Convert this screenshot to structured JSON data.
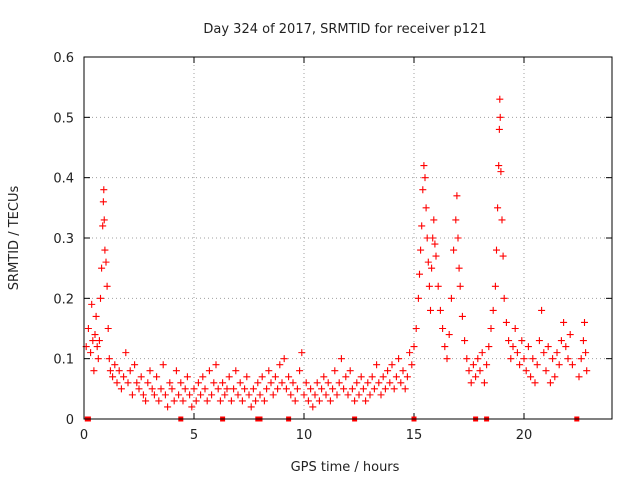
{
  "chart_data": {
    "type": "scatter",
    "title": "Day 324 of 2017, SRMTID for receiver p121",
    "xlabel": "GPS time / hours",
    "ylabel": "SRMTID / TECUs",
    "xlim": [
      0,
      24
    ],
    "ylim": [
      0,
      0.6
    ],
    "xticks": [
      0,
      5,
      10,
      15,
      20
    ],
    "xtick_labels": [
      "0",
      "5",
      "10",
      "15",
      "20"
    ],
    "yticks": [
      0,
      0.1,
      0.2,
      0.3,
      0.4,
      0.5,
      0.6
    ],
    "ytick_labels": [
      "0",
      "0.1",
      "0.2",
      "0.3",
      "0.4",
      "0.5",
      "0.6"
    ],
    "grid": true,
    "marker": "+",
    "series_color": "#ff0000",
    "series": [
      {
        "name": "SRMTID",
        "points": [
          [
            0.1,
            0.12
          ],
          [
            0.2,
            0.15
          ],
          [
            0.3,
            0.11
          ],
          [
            0.35,
            0.19
          ],
          [
            0.4,
            0.13
          ],
          [
            0.45,
            0.08
          ],
          [
            0.5,
            0.14
          ],
          [
            0.55,
            0.17
          ],
          [
            0.6,
            0.12
          ],
          [
            0.65,
            0.1
          ],
          [
            0.7,
            0.13
          ],
          [
            0.75,
            0.2
          ],
          [
            0.8,
            0.25
          ],
          [
            0.85,
            0.32
          ],
          [
            0.88,
            0.36
          ],
          [
            0.9,
            0.38
          ],
          [
            0.92,
            0.33
          ],
          [
            0.95,
            0.28
          ],
          [
            1.0,
            0.26
          ],
          [
            1.05,
            0.22
          ],
          [
            1.1,
            0.15
          ],
          [
            1.15,
            0.1
          ],
          [
            1.2,
            0.08
          ],
          [
            1.3,
            0.07
          ],
          [
            1.4,
            0.09
          ],
          [
            1.5,
            0.06
          ],
          [
            1.6,
            0.08
          ],
          [
            1.7,
            0.05
          ],
          [
            1.8,
            0.07
          ],
          [
            1.9,
            0.11
          ],
          [
            2.0,
            0.06
          ],
          [
            2.1,
            0.08
          ],
          [
            2.2,
            0.04
          ],
          [
            2.3,
            0.09
          ],
          [
            2.4,
            0.06
          ],
          [
            2.5,
            0.05
          ],
          [
            2.6,
            0.07
          ],
          [
            2.7,
            0.04
          ],
          [
            2.8,
            0.03
          ],
          [
            2.9,
            0.06
          ],
          [
            3.0,
            0.08
          ],
          [
            3.1,
            0.05
          ],
          [
            3.2,
            0.04
          ],
          [
            3.3,
            0.07
          ],
          [
            3.4,
            0.03
          ],
          [
            3.5,
            0.05
          ],
          [
            3.6,
            0.09
          ],
          [
            3.7,
            0.04
          ],
          [
            3.8,
            0.02
          ],
          [
            3.9,
            0.06
          ],
          [
            4.0,
            0.05
          ],
          [
            4.1,
            0.03
          ],
          [
            4.2,
            0.08
          ],
          [
            4.3,
            0.04
          ],
          [
            4.4,
            0.06
          ],
          [
            4.5,
            0.03
          ],
          [
            4.6,
            0.05
          ],
          [
            4.7,
            0.07
          ],
          [
            4.8,
            0.04
          ],
          [
            4.9,
            0.02
          ],
          [
            5.0,
            0.05
          ],
          [
            5.1,
            0.03
          ],
          [
            5.2,
            0.06
          ],
          [
            5.3,
            0.04
          ],
          [
            5.4,
            0.07
          ],
          [
            5.5,
            0.05
          ],
          [
            5.6,
            0.03
          ],
          [
            5.7,
            0.08
          ],
          [
            5.8,
            0.04
          ],
          [
            5.9,
            0.06
          ],
          [
            6.0,
            0.09
          ],
          [
            6.1,
            0.05
          ],
          [
            6.2,
            0.03
          ],
          [
            6.3,
            0.06
          ],
          [
            6.4,
            0.04
          ],
          [
            6.5,
            0.05
          ],
          [
            6.6,
            0.07
          ],
          [
            6.7,
            0.03
          ],
          [
            6.8,
            0.05
          ],
          [
            6.9,
            0.08
          ],
          [
            7.0,
            0.04
          ],
          [
            7.1,
            0.06
          ],
          [
            7.2,
            0.03
          ],
          [
            7.3,
            0.05
          ],
          [
            7.4,
            0.07
          ],
          [
            7.5,
            0.04
          ],
          [
            7.6,
            0.02
          ],
          [
            7.7,
            0.05
          ],
          [
            7.8,
            0.03
          ],
          [
            7.9,
            0.06
          ],
          [
            8.0,
            0.04
          ],
          [
            8.1,
            0.07
          ],
          [
            8.2,
            0.03
          ],
          [
            8.3,
            0.05
          ],
          [
            8.4,
            0.08
          ],
          [
            8.5,
            0.06
          ],
          [
            8.6,
            0.04
          ],
          [
            8.7,
            0.07
          ],
          [
            8.8,
            0.05
          ],
          [
            8.9,
            0.09
          ],
          [
            9.0,
            0.06
          ],
          [
            9.1,
            0.1
          ],
          [
            9.2,
            0.05
          ],
          [
            9.3,
            0.07
          ],
          [
            9.4,
            0.04
          ],
          [
            9.5,
            0.06
          ],
          [
            9.6,
            0.03
          ],
          [
            9.7,
            0.05
          ],
          [
            9.8,
            0.08
          ],
          [
            9.9,
            0.11
          ],
          [
            10.0,
            0.04
          ],
          [
            10.1,
            0.06
          ],
          [
            10.2,
            0.03
          ],
          [
            10.3,
            0.05
          ],
          [
            10.4,
            0.02
          ],
          [
            10.5,
            0.04
          ],
          [
            10.6,
            0.06
          ],
          [
            10.7,
            0.03
          ],
          [
            10.8,
            0.05
          ],
          [
            10.9,
            0.07
          ],
          [
            11.0,
            0.04
          ],
          [
            11.1,
            0.06
          ],
          [
            11.2,
            0.03
          ],
          [
            11.3,
            0.05
          ],
          [
            11.4,
            0.08
          ],
          [
            11.5,
            0.04
          ],
          [
            11.6,
            0.06
          ],
          [
            11.7,
            0.1
          ],
          [
            11.8,
            0.05
          ],
          [
            11.9,
            0.07
          ],
          [
            12.0,
            0.04
          ],
          [
            12.1,
            0.08
          ],
          [
            12.2,
            0.05
          ],
          [
            12.3,
            0.03
          ],
          [
            12.4,
            0.06
          ],
          [
            12.5,
            0.04
          ],
          [
            12.6,
            0.07
          ],
          [
            12.7,
            0.05
          ],
          [
            12.8,
            0.03
          ],
          [
            12.9,
            0.06
          ],
          [
            13.0,
            0.04
          ],
          [
            13.1,
            0.07
          ],
          [
            13.2,
            0.05
          ],
          [
            13.3,
            0.09
          ],
          [
            13.4,
            0.06
          ],
          [
            13.5,
            0.04
          ],
          [
            13.6,
            0.07
          ],
          [
            13.7,
            0.05
          ],
          [
            13.8,
            0.08
          ],
          [
            13.9,
            0.06
          ],
          [
            14.0,
            0.09
          ],
          [
            14.1,
            0.05
          ],
          [
            14.2,
            0.07
          ],
          [
            14.3,
            0.1
          ],
          [
            14.4,
            0.06
          ],
          [
            14.5,
            0.08
          ],
          [
            14.6,
            0.05
          ],
          [
            14.7,
            0.07
          ],
          [
            14.8,
            0.11
          ],
          [
            14.9,
            0.09
          ],
          [
            15.0,
            0.12
          ],
          [
            15.1,
            0.15
          ],
          [
            15.2,
            0.2
          ],
          [
            15.25,
            0.24
          ],
          [
            15.3,
            0.28
          ],
          [
            15.35,
            0.32
          ],
          [
            15.4,
            0.38
          ],
          [
            15.45,
            0.42
          ],
          [
            15.5,
            0.4
          ],
          [
            15.55,
            0.35
          ],
          [
            15.6,
            0.3
          ],
          [
            15.65,
            0.26
          ],
          [
            15.7,
            0.22
          ],
          [
            15.75,
            0.18
          ],
          [
            15.8,
            0.25
          ],
          [
            15.85,
            0.3
          ],
          [
            15.9,
            0.33
          ],
          [
            15.95,
            0.29
          ],
          [
            16.0,
            0.27
          ],
          [
            16.1,
            0.22
          ],
          [
            16.2,
            0.18
          ],
          [
            16.3,
            0.15
          ],
          [
            16.4,
            0.12
          ],
          [
            16.5,
            0.1
          ],
          [
            16.6,
            0.14
          ],
          [
            16.7,
            0.2
          ],
          [
            16.8,
            0.28
          ],
          [
            16.9,
            0.33
          ],
          [
            16.95,
            0.37
          ],
          [
            17.0,
            0.3
          ],
          [
            17.05,
            0.25
          ],
          [
            17.1,
            0.22
          ],
          [
            17.2,
            0.17
          ],
          [
            17.3,
            0.13
          ],
          [
            17.4,
            0.1
          ],
          [
            17.5,
            0.08
          ],
          [
            17.6,
            0.06
          ],
          [
            17.7,
            0.09
          ],
          [
            17.8,
            0.07
          ],
          [
            17.9,
            0.1
          ],
          [
            18.0,
            0.08
          ],
          [
            18.1,
            0.11
          ],
          [
            18.2,
            0.06
          ],
          [
            18.3,
            0.09
          ],
          [
            18.4,
            0.12
          ],
          [
            18.5,
            0.15
          ],
          [
            18.6,
            0.18
          ],
          [
            18.7,
            0.22
          ],
          [
            18.75,
            0.28
          ],
          [
            18.8,
            0.35
          ],
          [
            18.85,
            0.42
          ],
          [
            18.88,
            0.48
          ],
          [
            18.9,
            0.53
          ],
          [
            18.92,
            0.5
          ],
          [
            18.95,
            0.41
          ],
          [
            19.0,
            0.33
          ],
          [
            19.05,
            0.27
          ],
          [
            19.1,
            0.2
          ],
          [
            19.2,
            0.16
          ],
          [
            19.3,
            0.13
          ],
          [
            19.4,
            0.1
          ],
          [
            19.5,
            0.12
          ],
          [
            19.6,
            0.15
          ],
          [
            19.7,
            0.11
          ],
          [
            19.8,
            0.09
          ],
          [
            19.9,
            0.13
          ],
          [
            20.0,
            0.1
          ],
          [
            20.1,
            0.08
          ],
          [
            20.2,
            0.12
          ],
          [
            20.3,
            0.07
          ],
          [
            20.4,
            0.1
          ],
          [
            20.5,
            0.06
          ],
          [
            20.6,
            0.09
          ],
          [
            20.7,
            0.13
          ],
          [
            20.8,
            0.18
          ],
          [
            20.9,
            0.11
          ],
          [
            21.0,
            0.08
          ],
          [
            21.1,
            0.12
          ],
          [
            21.2,
            0.06
          ],
          [
            21.3,
            0.1
          ],
          [
            21.4,
            0.07
          ],
          [
            21.5,
            0.11
          ],
          [
            21.6,
            0.09
          ],
          [
            21.7,
            0.13
          ],
          [
            21.8,
            0.16
          ],
          [
            21.9,
            0.12
          ],
          [
            22.0,
            0.1
          ],
          [
            22.1,
            0.14
          ],
          [
            22.2,
            0.09
          ],
          [
            22.5,
            0.07
          ],
          [
            22.6,
            0.1
          ],
          [
            22.7,
            0.13
          ],
          [
            22.75,
            0.16
          ],
          [
            22.8,
            0.11
          ],
          [
            22.85,
            0.08
          ]
        ],
        "zero_points": [
          0.15,
          0.2,
          4.4,
          6.3,
          7.9,
          8.0,
          9.3,
          12.3,
          15.0,
          17.8,
          18.3,
          22.4
        ]
      }
    ]
  }
}
